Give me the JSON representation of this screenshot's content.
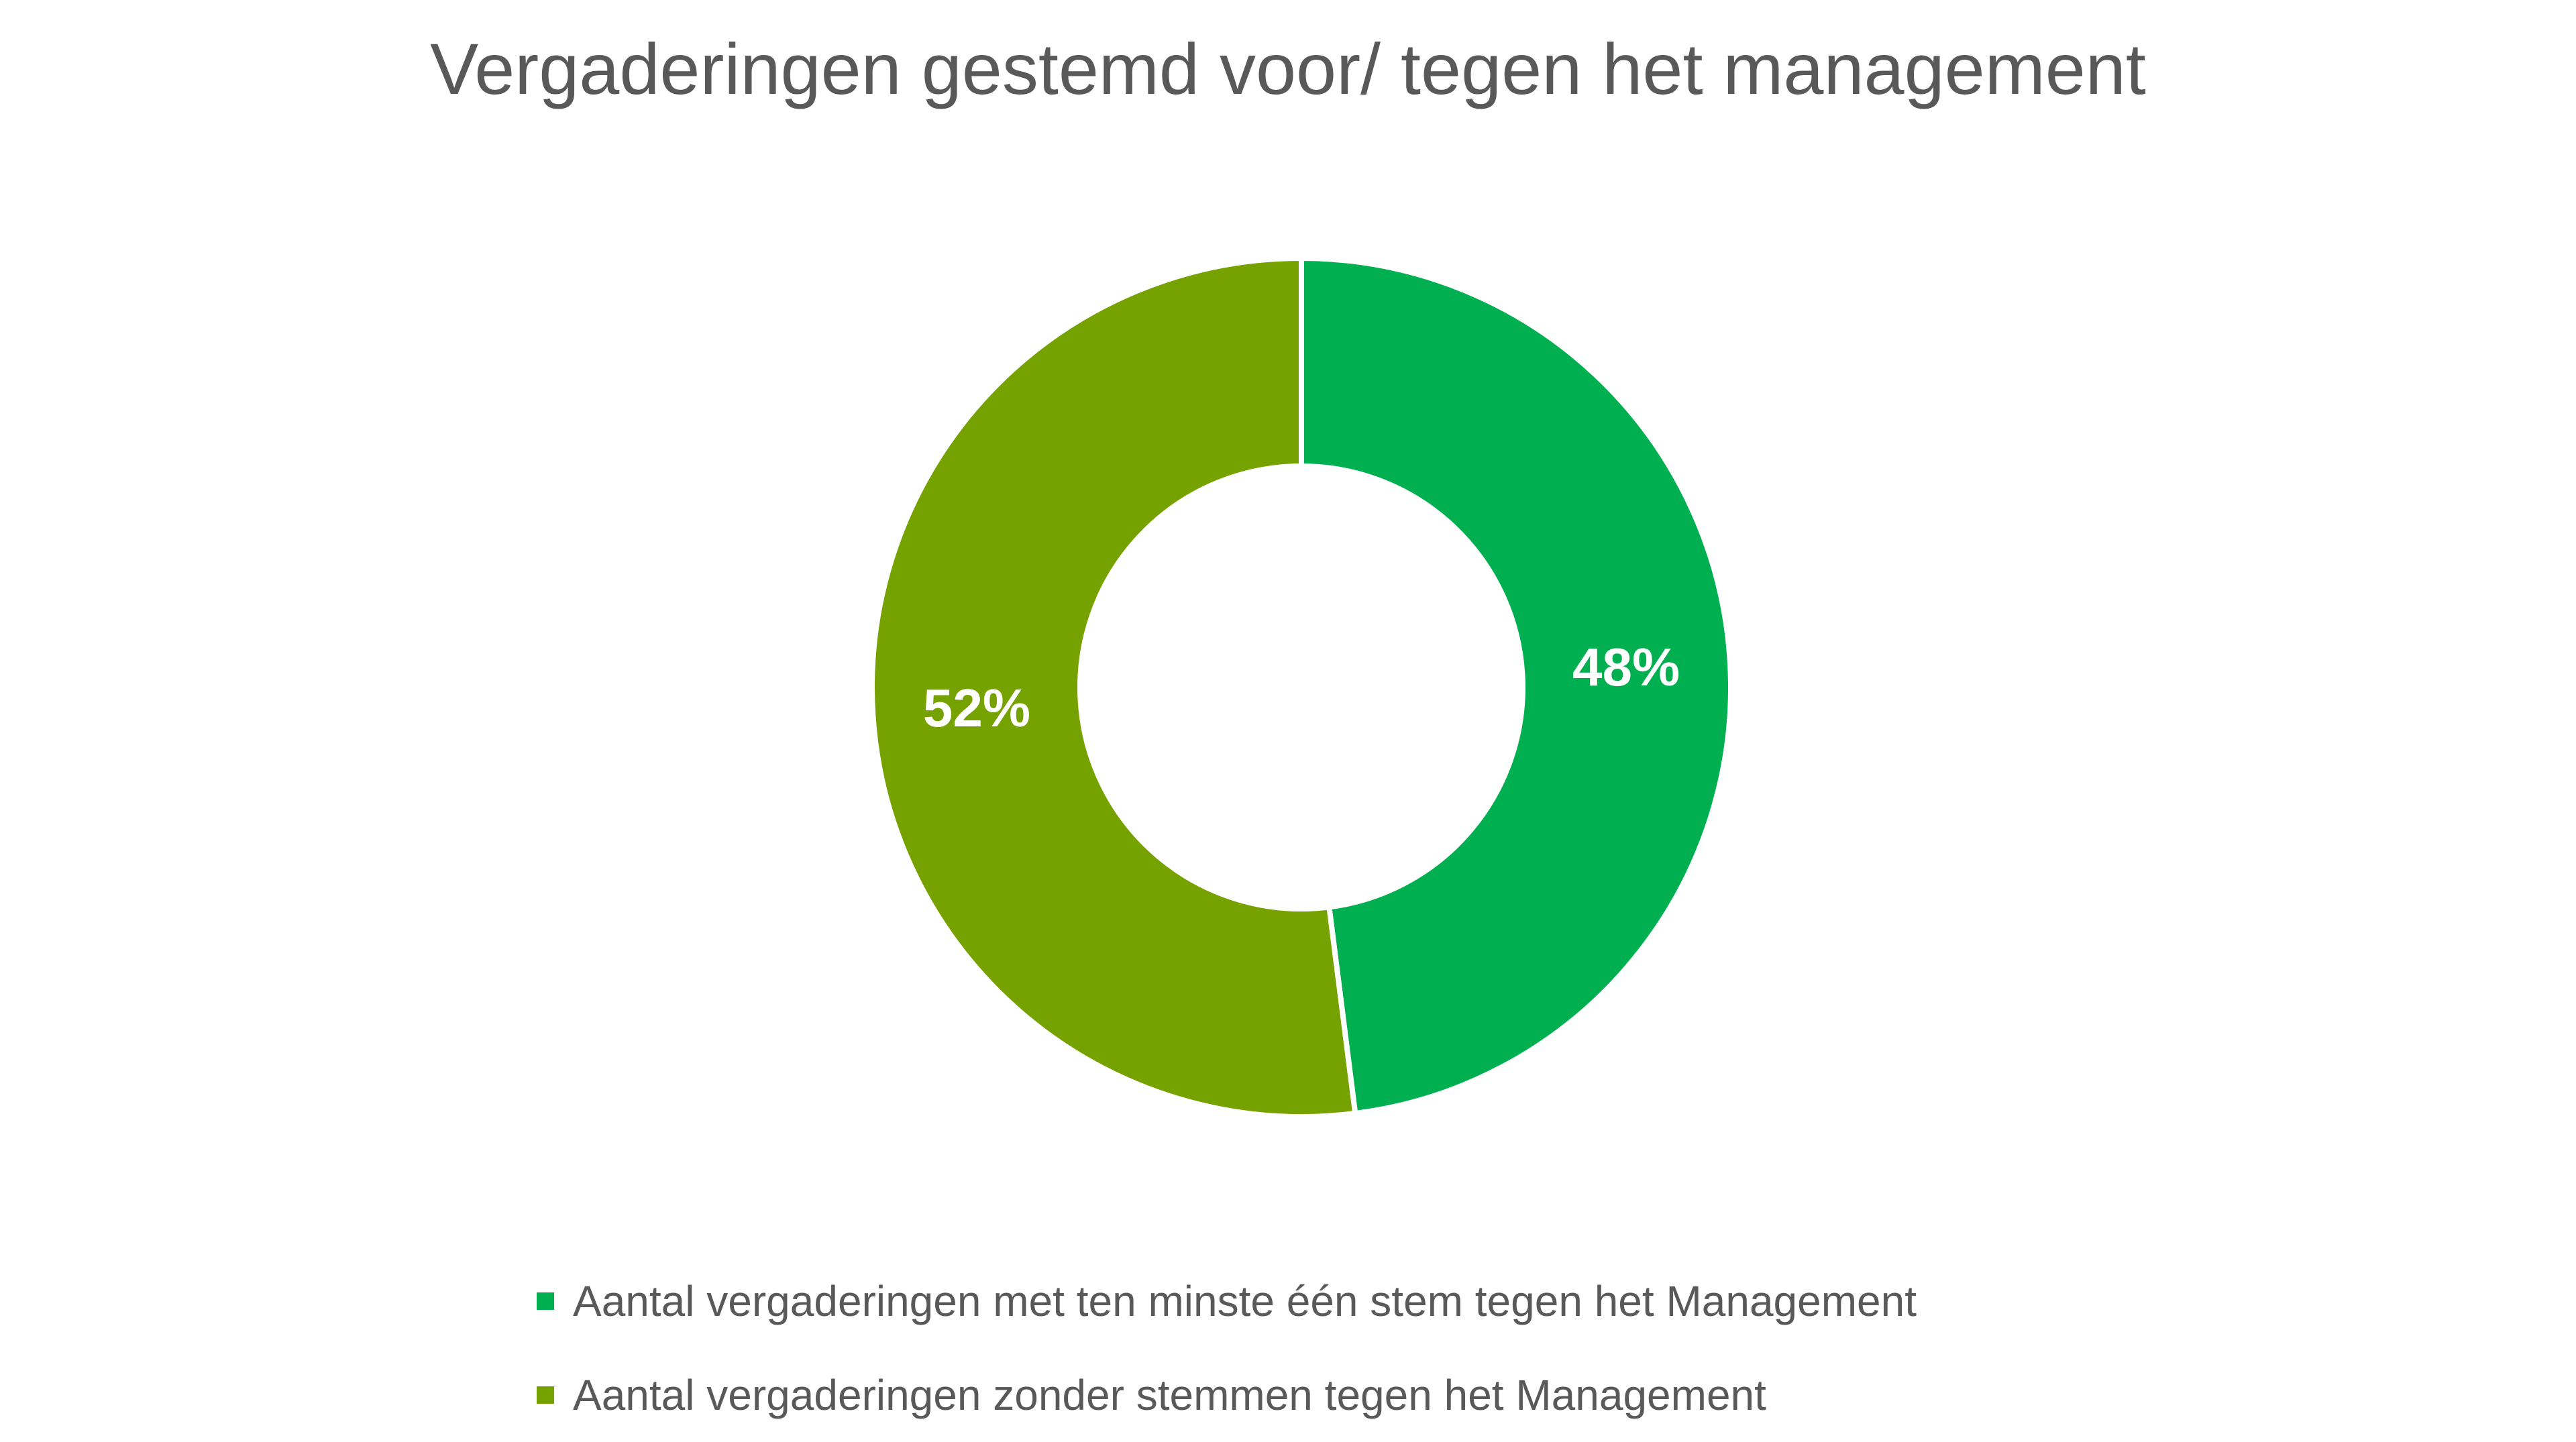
{
  "chart_data": {
    "type": "pie",
    "variant": "donut",
    "title": "Vergaderingen gestemd voor/ tegen het management",
    "slices": [
      {
        "label": "Aantal vergaderingen met ten minste één stem tegen het Management",
        "value": 48,
        "display": "48%",
        "color": "#00B050"
      },
      {
        "label": "Aantal vergaderingen  zonder stemmen tegen het Management",
        "value": 52,
        "display": "52%",
        "color": "#76A200"
      }
    ],
    "legend_position": "bottom-left",
    "start_angle": "top",
    "direction": "clockwise"
  }
}
